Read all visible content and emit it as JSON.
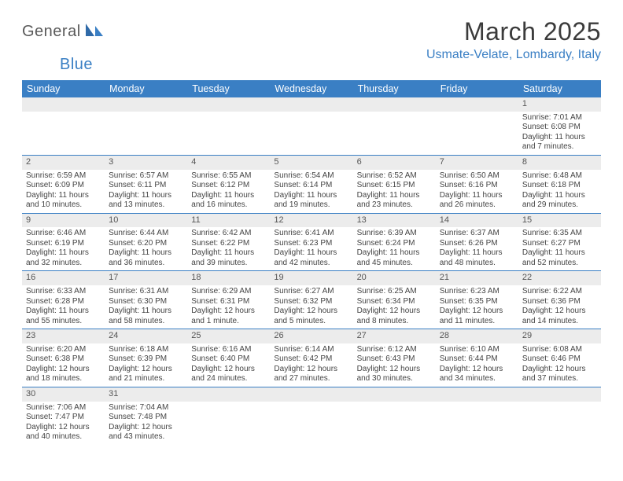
{
  "logo": {
    "general": "General",
    "blue": "Blue"
  },
  "title": "March 2025",
  "location": "Usmate-Velate, Lombardy, Italy",
  "colors": {
    "header_bg": "#3a7fc4",
    "header_text": "#ffffff",
    "divider": "#3a7fc4",
    "daynum_bg": "#ececec",
    "logo_gray": "#5a5a5a",
    "logo_blue": "#3a7fc4",
    "title_color": "#3b3b3b"
  },
  "day_headers": [
    "Sunday",
    "Monday",
    "Tuesday",
    "Wednesday",
    "Thursday",
    "Friday",
    "Saturday"
  ],
  "weeks": [
    [
      {
        "empty": true
      },
      {
        "empty": true
      },
      {
        "empty": true
      },
      {
        "empty": true
      },
      {
        "empty": true
      },
      {
        "empty": true
      },
      {
        "n": "1",
        "sunrise": "Sunrise: 7:01 AM",
        "sunset": "Sunset: 6:08 PM",
        "daylight": "Daylight: 11 hours and 7 minutes."
      }
    ],
    [
      {
        "n": "2",
        "sunrise": "Sunrise: 6:59 AM",
        "sunset": "Sunset: 6:09 PM",
        "daylight": "Daylight: 11 hours and 10 minutes."
      },
      {
        "n": "3",
        "sunrise": "Sunrise: 6:57 AM",
        "sunset": "Sunset: 6:11 PM",
        "daylight": "Daylight: 11 hours and 13 minutes."
      },
      {
        "n": "4",
        "sunrise": "Sunrise: 6:55 AM",
        "sunset": "Sunset: 6:12 PM",
        "daylight": "Daylight: 11 hours and 16 minutes."
      },
      {
        "n": "5",
        "sunrise": "Sunrise: 6:54 AM",
        "sunset": "Sunset: 6:14 PM",
        "daylight": "Daylight: 11 hours and 19 minutes."
      },
      {
        "n": "6",
        "sunrise": "Sunrise: 6:52 AM",
        "sunset": "Sunset: 6:15 PM",
        "daylight": "Daylight: 11 hours and 23 minutes."
      },
      {
        "n": "7",
        "sunrise": "Sunrise: 6:50 AM",
        "sunset": "Sunset: 6:16 PM",
        "daylight": "Daylight: 11 hours and 26 minutes."
      },
      {
        "n": "8",
        "sunrise": "Sunrise: 6:48 AM",
        "sunset": "Sunset: 6:18 PM",
        "daylight": "Daylight: 11 hours and 29 minutes."
      }
    ],
    [
      {
        "n": "9",
        "sunrise": "Sunrise: 6:46 AM",
        "sunset": "Sunset: 6:19 PM",
        "daylight": "Daylight: 11 hours and 32 minutes."
      },
      {
        "n": "10",
        "sunrise": "Sunrise: 6:44 AM",
        "sunset": "Sunset: 6:20 PM",
        "daylight": "Daylight: 11 hours and 36 minutes."
      },
      {
        "n": "11",
        "sunrise": "Sunrise: 6:42 AM",
        "sunset": "Sunset: 6:22 PM",
        "daylight": "Daylight: 11 hours and 39 minutes."
      },
      {
        "n": "12",
        "sunrise": "Sunrise: 6:41 AM",
        "sunset": "Sunset: 6:23 PM",
        "daylight": "Daylight: 11 hours and 42 minutes."
      },
      {
        "n": "13",
        "sunrise": "Sunrise: 6:39 AM",
        "sunset": "Sunset: 6:24 PM",
        "daylight": "Daylight: 11 hours and 45 minutes."
      },
      {
        "n": "14",
        "sunrise": "Sunrise: 6:37 AM",
        "sunset": "Sunset: 6:26 PM",
        "daylight": "Daylight: 11 hours and 48 minutes."
      },
      {
        "n": "15",
        "sunrise": "Sunrise: 6:35 AM",
        "sunset": "Sunset: 6:27 PM",
        "daylight": "Daylight: 11 hours and 52 minutes."
      }
    ],
    [
      {
        "n": "16",
        "sunrise": "Sunrise: 6:33 AM",
        "sunset": "Sunset: 6:28 PM",
        "daylight": "Daylight: 11 hours and 55 minutes."
      },
      {
        "n": "17",
        "sunrise": "Sunrise: 6:31 AM",
        "sunset": "Sunset: 6:30 PM",
        "daylight": "Daylight: 11 hours and 58 minutes."
      },
      {
        "n": "18",
        "sunrise": "Sunrise: 6:29 AM",
        "sunset": "Sunset: 6:31 PM",
        "daylight": "Daylight: 12 hours and 1 minute."
      },
      {
        "n": "19",
        "sunrise": "Sunrise: 6:27 AM",
        "sunset": "Sunset: 6:32 PM",
        "daylight": "Daylight: 12 hours and 5 minutes."
      },
      {
        "n": "20",
        "sunrise": "Sunrise: 6:25 AM",
        "sunset": "Sunset: 6:34 PM",
        "daylight": "Daylight: 12 hours and 8 minutes."
      },
      {
        "n": "21",
        "sunrise": "Sunrise: 6:23 AM",
        "sunset": "Sunset: 6:35 PM",
        "daylight": "Daylight: 12 hours and 11 minutes."
      },
      {
        "n": "22",
        "sunrise": "Sunrise: 6:22 AM",
        "sunset": "Sunset: 6:36 PM",
        "daylight": "Daylight: 12 hours and 14 minutes."
      }
    ],
    [
      {
        "n": "23",
        "sunrise": "Sunrise: 6:20 AM",
        "sunset": "Sunset: 6:38 PM",
        "daylight": "Daylight: 12 hours and 18 minutes."
      },
      {
        "n": "24",
        "sunrise": "Sunrise: 6:18 AM",
        "sunset": "Sunset: 6:39 PM",
        "daylight": "Daylight: 12 hours and 21 minutes."
      },
      {
        "n": "25",
        "sunrise": "Sunrise: 6:16 AM",
        "sunset": "Sunset: 6:40 PM",
        "daylight": "Daylight: 12 hours and 24 minutes."
      },
      {
        "n": "26",
        "sunrise": "Sunrise: 6:14 AM",
        "sunset": "Sunset: 6:42 PM",
        "daylight": "Daylight: 12 hours and 27 minutes."
      },
      {
        "n": "27",
        "sunrise": "Sunrise: 6:12 AM",
        "sunset": "Sunset: 6:43 PM",
        "daylight": "Daylight: 12 hours and 30 minutes."
      },
      {
        "n": "28",
        "sunrise": "Sunrise: 6:10 AM",
        "sunset": "Sunset: 6:44 PM",
        "daylight": "Daylight: 12 hours and 34 minutes."
      },
      {
        "n": "29",
        "sunrise": "Sunrise: 6:08 AM",
        "sunset": "Sunset: 6:46 PM",
        "daylight": "Daylight: 12 hours and 37 minutes."
      }
    ],
    [
      {
        "n": "30",
        "sunrise": "Sunrise: 7:06 AM",
        "sunset": "Sunset: 7:47 PM",
        "daylight": "Daylight: 12 hours and 40 minutes."
      },
      {
        "n": "31",
        "sunrise": "Sunrise: 7:04 AM",
        "sunset": "Sunset: 7:48 PM",
        "daylight": "Daylight: 12 hours and 43 minutes."
      },
      {
        "empty": true
      },
      {
        "empty": true
      },
      {
        "empty": true
      },
      {
        "empty": true
      },
      {
        "empty": true
      }
    ]
  ]
}
